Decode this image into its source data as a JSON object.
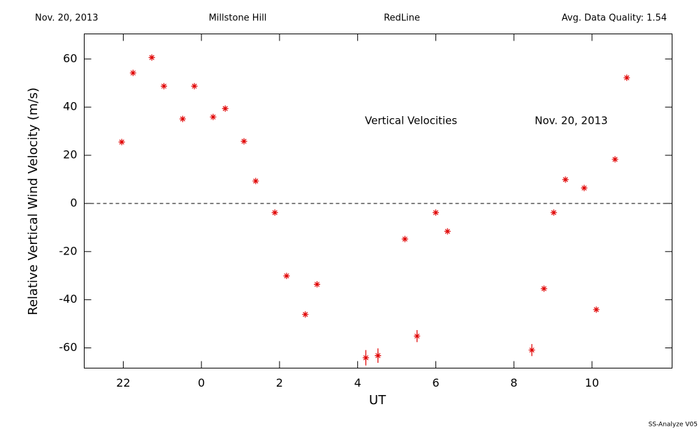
{
  "chart_data": {
    "type": "scatter",
    "header": [
      "Nov. 20, 2013",
      "Millstone Hill",
      "RedLine",
      "Avg. Data Quality: 1.54"
    ],
    "annotations": [
      "Vertical Velocities",
      "Nov. 20, 2013"
    ],
    "xlabel": "UT",
    "ylabel": "Relative Vertical Wind Velocity (m/s)",
    "footer": "SS-Analyze V05",
    "color": "#e00000",
    "hline": 0,
    "xlim": [
      -3,
      12.05
    ],
    "ylim": [
      -68.4,
      70.4
    ],
    "xticks": [
      {
        "value": -2,
        "label": "22"
      },
      0,
      2,
      4,
      6,
      8,
      10
    ],
    "yticks": [
      -60,
      -40,
      -20,
      0,
      20,
      40,
      60
    ],
    "x": [
      -2.04,
      -1.75,
      -1.27,
      -0.96,
      -0.48,
      -0.18,
      0.3,
      0.61,
      1.09,
      1.39,
      1.88,
      2.18,
      2.66,
      2.96,
      4.21,
      4.52,
      5.21,
      5.52,
      6.0,
      6.3,
      8.46,
      8.77,
      9.02,
      9.32,
      9.8,
      10.11,
      10.59,
      10.89
    ],
    "values": [
      25.5,
      54.2,
      60.6,
      48.7,
      35.1,
      48.7,
      35.9,
      39.4,
      25.8,
      9.3,
      -3.8,
      -30.1,
      -46.1,
      -33.6,
      -64.1,
      -63.2,
      -14.8,
      -55.1,
      -3.8,
      -11.6,
      -60.9,
      -35.4,
      -3.8,
      9.9,
      6.4,
      -44.1,
      18.3,
      52.2
    ],
    "errors": [
      null,
      null,
      null,
      null,
      null,
      null,
      null,
      null,
      null,
      null,
      null,
      null,
      null,
      null,
      3.2,
      3.0,
      null,
      2.5,
      null,
      null,
      2.5,
      null,
      null,
      null,
      null,
      null,
      null,
      null
    ]
  }
}
